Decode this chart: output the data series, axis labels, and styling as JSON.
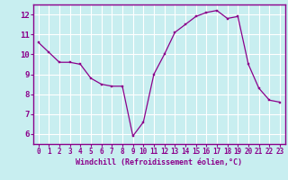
{
  "x": [
    0,
    1,
    2,
    3,
    4,
    5,
    6,
    7,
    8,
    9,
    10,
    11,
    12,
    13,
    14,
    15,
    16,
    17,
    18,
    19,
    20,
    21,
    22,
    23
  ],
  "y": [
    10.6,
    10.1,
    9.6,
    9.6,
    9.5,
    8.8,
    8.5,
    8.4,
    8.4,
    5.9,
    6.6,
    9.0,
    10.0,
    11.1,
    11.5,
    11.9,
    12.1,
    12.2,
    11.8,
    11.9,
    9.5,
    8.3,
    7.7,
    7.6
  ],
  "line_color": "#8b008b",
  "marker_color": "#8b008b",
  "bg_color": "#c8eef0",
  "grid_color": "#b0dde0",
  "axis_color": "#8b008b",
  "xlabel": "Windchill (Refroidissement éolien,°C)",
  "xlabel_color": "#8b008b",
  "tick_color": "#8b008b",
  "xlim": [
    -0.5,
    23.5
  ],
  "ylim": [
    5.5,
    12.5
  ],
  "yticks": [
    6,
    7,
    8,
    9,
    10,
    11,
    12
  ],
  "xticks": [
    0,
    1,
    2,
    3,
    4,
    5,
    6,
    7,
    8,
    9,
    10,
    11,
    12,
    13,
    14,
    15,
    16,
    17,
    18,
    19,
    20,
    21,
    22,
    23
  ]
}
